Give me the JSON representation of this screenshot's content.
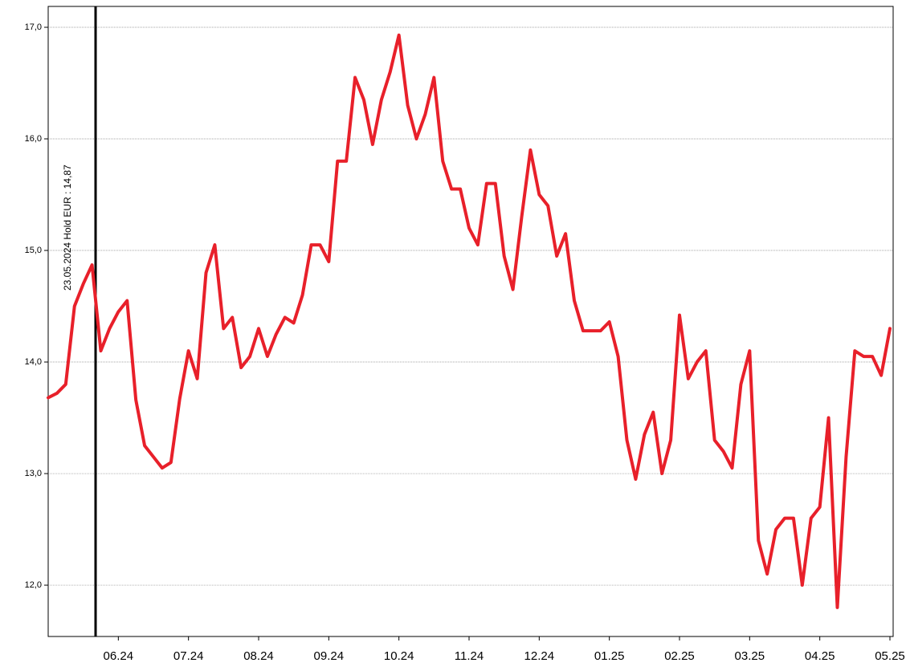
{
  "chart_data": {
    "type": "line",
    "annotation": "23.05.2024 Hold EUR : 14,87",
    "categories": [
      null,
      null,
      null,
      null,
      null,
      null,
      null,
      null,
      "06.24",
      null,
      null,
      null,
      null,
      null,
      null,
      null,
      "07.24",
      null,
      null,
      null,
      null,
      null,
      null,
      null,
      "08.24",
      null,
      null,
      null,
      null,
      null,
      null,
      null,
      "09.24",
      null,
      null,
      null,
      null,
      null,
      null,
      null,
      "10.24",
      null,
      null,
      null,
      null,
      null,
      null,
      null,
      "11.24",
      null,
      null,
      null,
      null,
      null,
      null,
      null,
      "12.24",
      null,
      null,
      null,
      null,
      null,
      null,
      null,
      "01.25",
      null,
      null,
      null,
      null,
      null,
      null,
      null,
      "02.25",
      null,
      null,
      null,
      null,
      null,
      null,
      null,
      "03.25",
      null,
      null,
      null,
      null,
      null,
      null,
      null,
      "04.25",
      null,
      null,
      null,
      null,
      null,
      null,
      null,
      "05.25"
    ],
    "values": [
      13.68,
      13.72,
      13.8,
      14.5,
      14.7,
      14.87,
      14.1,
      14.3,
      14.45,
      14.55,
      13.66,
      13.25,
      13.15,
      13.05,
      13.1,
      13.67,
      14.1,
      13.85,
      14.8,
      15.05,
      14.3,
      14.4,
      13.95,
      14.05,
      14.3,
      14.05,
      14.25,
      14.4,
      14.35,
      14.6,
      15.05,
      15.05,
      14.9,
      15.8,
      15.8,
      16.55,
      16.35,
      15.95,
      16.35,
      16.6,
      16.93,
      16.3,
      16.0,
      16.22,
      16.55,
      15.8,
      15.55,
      15.55,
      15.2,
      15.05,
      15.6,
      15.6,
      14.95,
      14.65,
      15.3,
      15.9,
      15.5,
      15.4,
      14.95,
      15.15,
      14.55,
      14.28,
      14.28,
      14.28,
      14.36,
      14.05,
      13.3,
      12.95,
      13.35,
      13.55,
      13.0,
      13.3,
      14.42,
      13.85,
      14.0,
      14.1,
      13.3,
      13.2,
      13.05,
      13.8,
      14.1,
      12.4,
      12.1,
      12.5,
      12.6,
      12.6,
      12.0,
      12.6,
      12.7,
      13.5,
      11.8,
      13.15,
      14.1,
      14.05,
      14.05,
      13.88,
      14.3
    ],
    "color": "#e8202a",
    "ylim": [
      11.54,
      17.187
    ],
    "yticks": [
      {
        "value": 12,
        "label": "12,0"
      },
      {
        "value": 13,
        "label": "13,0"
      },
      {
        "value": 14,
        "label": "14,0"
      },
      {
        "value": 15,
        "label": "15,0"
      },
      {
        "value": 16,
        "label": "16,0"
      },
      {
        "value": 17,
        "label": "17,0"
      }
    ],
    "grid": true
  }
}
